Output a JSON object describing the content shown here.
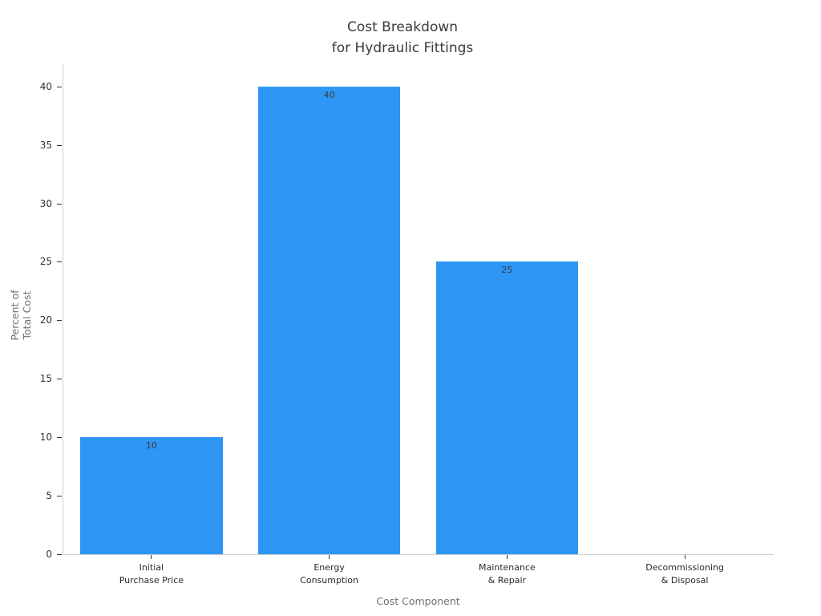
{
  "chart_data": {
    "type": "bar",
    "title": "Cost Breakdown\nfor Hydraulic Fittings",
    "xlabel": "Cost Component",
    "ylabel": "Percent of\nTotal Cost",
    "categories": [
      "Initial\nPurchase Price",
      "Energy\nConsumption",
      "Maintenance\n& Repair",
      "Decommissioning\n& Disposal"
    ],
    "values": [
      10,
      40,
      25,
      0
    ],
    "value_labels_shown": [
      "10",
      "40",
      "25",
      ""
    ],
    "yticks": [
      0,
      5,
      10,
      15,
      20,
      25,
      30,
      35,
      40
    ],
    "ylim": [
      0,
      41.9
    ],
    "grid": false,
    "legend": "none",
    "colors": {
      "bar": "#2E96F5",
      "title_text": "#3b3b3b",
      "tick_text": "#333333",
      "xtick_text": "#2b2b2b",
      "axis_title_text": "#707070",
      "value_label_text": "#3d3d3d",
      "axis_line": "#cfcfcf",
      "tick_mark": "#333333",
      "background": "#ffffff"
    }
  }
}
